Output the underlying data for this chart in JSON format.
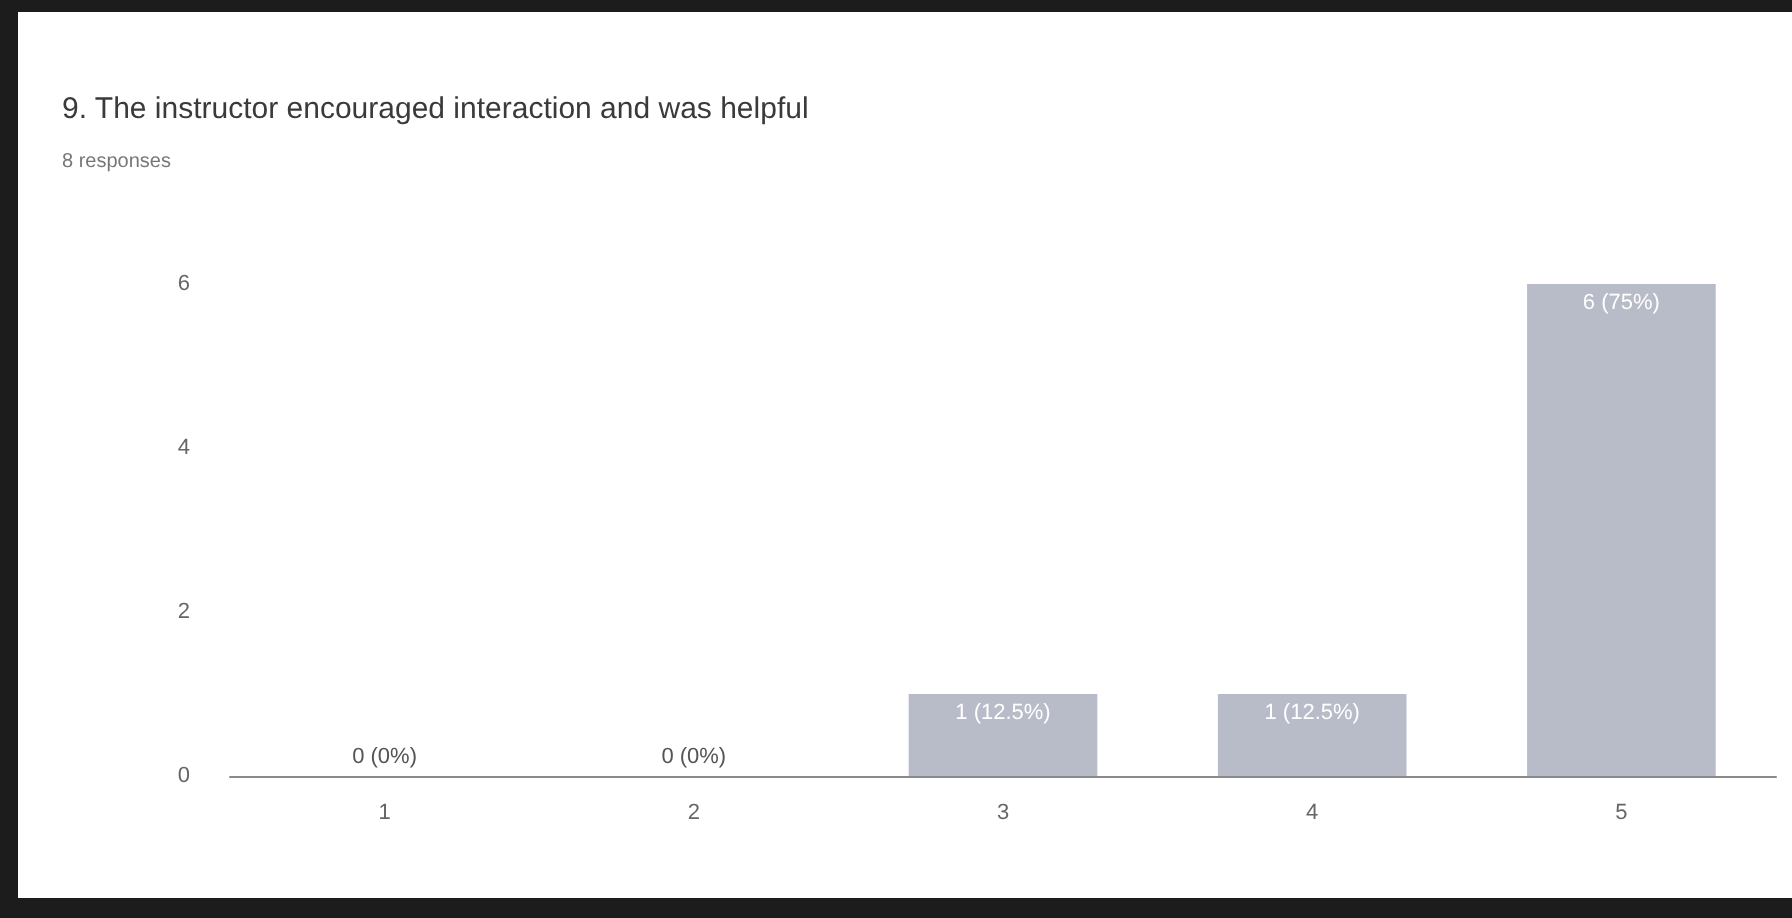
{
  "chart_data": {
    "type": "bar",
    "title": "9. The instructor encouraged interaction and was helpful",
    "subtitle": "8 responses",
    "categories": [
      "1",
      "2",
      "3",
      "4",
      "5"
    ],
    "values": [
      0,
      0,
      1,
      1,
      6
    ],
    "color": "#b8bbc8",
    "value_labels": [
      "0 (0%)",
      "0 (0%)",
      "1 (12.5%)",
      "1 (12.5%)",
      "6 (75%)"
    ],
    "ylim": [
      0,
      6
    ],
    "yticks": [
      0,
      2,
      4,
      6
    ]
  }
}
